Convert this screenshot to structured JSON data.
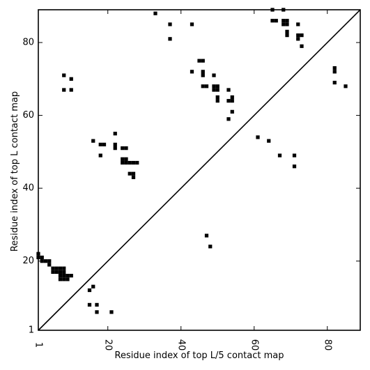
{
  "chart_data": {
    "type": "scatter",
    "marker": "square",
    "title": "",
    "xlabel": "Residue index of top L/5 contact map",
    "ylabel": "Residue index of top L contact map",
    "xlim": [
      1,
      89
    ],
    "ylim": [
      1,
      89
    ],
    "x_ticks": [
      1,
      20,
      40,
      60,
      80
    ],
    "y_ticks": [
      1,
      20,
      40,
      60,
      80
    ],
    "diagonal": true,
    "grid": false,
    "legend": "none",
    "colors": {
      "marker": "#000000",
      "diagonal": "#000000"
    },
    "series": [
      {
        "points": [
          [
            1,
            21
          ],
          [
            1,
            22
          ],
          [
            2,
            20
          ],
          [
            2,
            21
          ],
          [
            3,
            20
          ],
          [
            4,
            20
          ],
          [
            4,
            19
          ],
          [
            5,
            17
          ],
          [
            5,
            18
          ],
          [
            6,
            17
          ],
          [
            6,
            18
          ],
          [
            7,
            16
          ],
          [
            7,
            15
          ],
          [
            7,
            17
          ],
          [
            7,
            18
          ],
          [
            8,
            15
          ],
          [
            8,
            16
          ],
          [
            8,
            17
          ],
          [
            8,
            18
          ],
          [
            9,
            15
          ],
          [
            9,
            16
          ],
          [
            10,
            16
          ],
          [
            15,
            12
          ],
          [
            15,
            8
          ],
          [
            16,
            13
          ],
          [
            17,
            8
          ],
          [
            17,
            6
          ],
          [
            21,
            6
          ],
          [
            8,
            71
          ],
          [
            8,
            67
          ],
          [
            10,
            70
          ],
          [
            10,
            67
          ],
          [
            16,
            53
          ],
          [
            18,
            49
          ],
          [
            18,
            52
          ],
          [
            19,
            52
          ],
          [
            22,
            55
          ],
          [
            22,
            52
          ],
          [
            22,
            51
          ],
          [
            24,
            51
          ],
          [
            25,
            51
          ],
          [
            24,
            48
          ],
          [
            25,
            48
          ],
          [
            24,
            47
          ],
          [
            25,
            47
          ],
          [
            26,
            47
          ],
          [
            27,
            47
          ],
          [
            28,
            47
          ],
          [
            26,
            44
          ],
          [
            27,
            44
          ],
          [
            27,
            43
          ],
          [
            33,
            88
          ],
          [
            37,
            85
          ],
          [
            37,
            81
          ],
          [
            43,
            85
          ],
          [
            43,
            72
          ],
          [
            45,
            75
          ],
          [
            46,
            75
          ],
          [
            46,
            72
          ],
          [
            46,
            71
          ],
          [
            46,
            68
          ],
          [
            47,
            68
          ],
          [
            49,
            71
          ],
          [
            49,
            68
          ],
          [
            50,
            68
          ],
          [
            49,
            67
          ],
          [
            50,
            67
          ],
          [
            50,
            65
          ],
          [
            50,
            64
          ],
          [
            53,
            67
          ],
          [
            53,
            64
          ],
          [
            54,
            65
          ],
          [
            54,
            64
          ],
          [
            54,
            61
          ],
          [
            53,
            59
          ],
          [
            61,
            54
          ],
          [
            64,
            53
          ],
          [
            67,
            49
          ],
          [
            71,
            49
          ],
          [
            71,
            46
          ],
          [
            65,
            89
          ],
          [
            65,
            86
          ],
          [
            66,
            86
          ],
          [
            68,
            89
          ],
          [
            68,
            86
          ],
          [
            69,
            86
          ],
          [
            68,
            85
          ],
          [
            69,
            85
          ],
          [
            69,
            83
          ],
          [
            69,
            82
          ],
          [
            72,
            85
          ],
          [
            72,
            82
          ],
          [
            73,
            82
          ],
          [
            72,
            81
          ],
          [
            73,
            79
          ],
          [
            82,
            73
          ],
          [
            82,
            72
          ],
          [
            82,
            69
          ],
          [
            85,
            68
          ],
          [
            47,
            27
          ],
          [
            48,
            24
          ]
        ]
      }
    ]
  }
}
